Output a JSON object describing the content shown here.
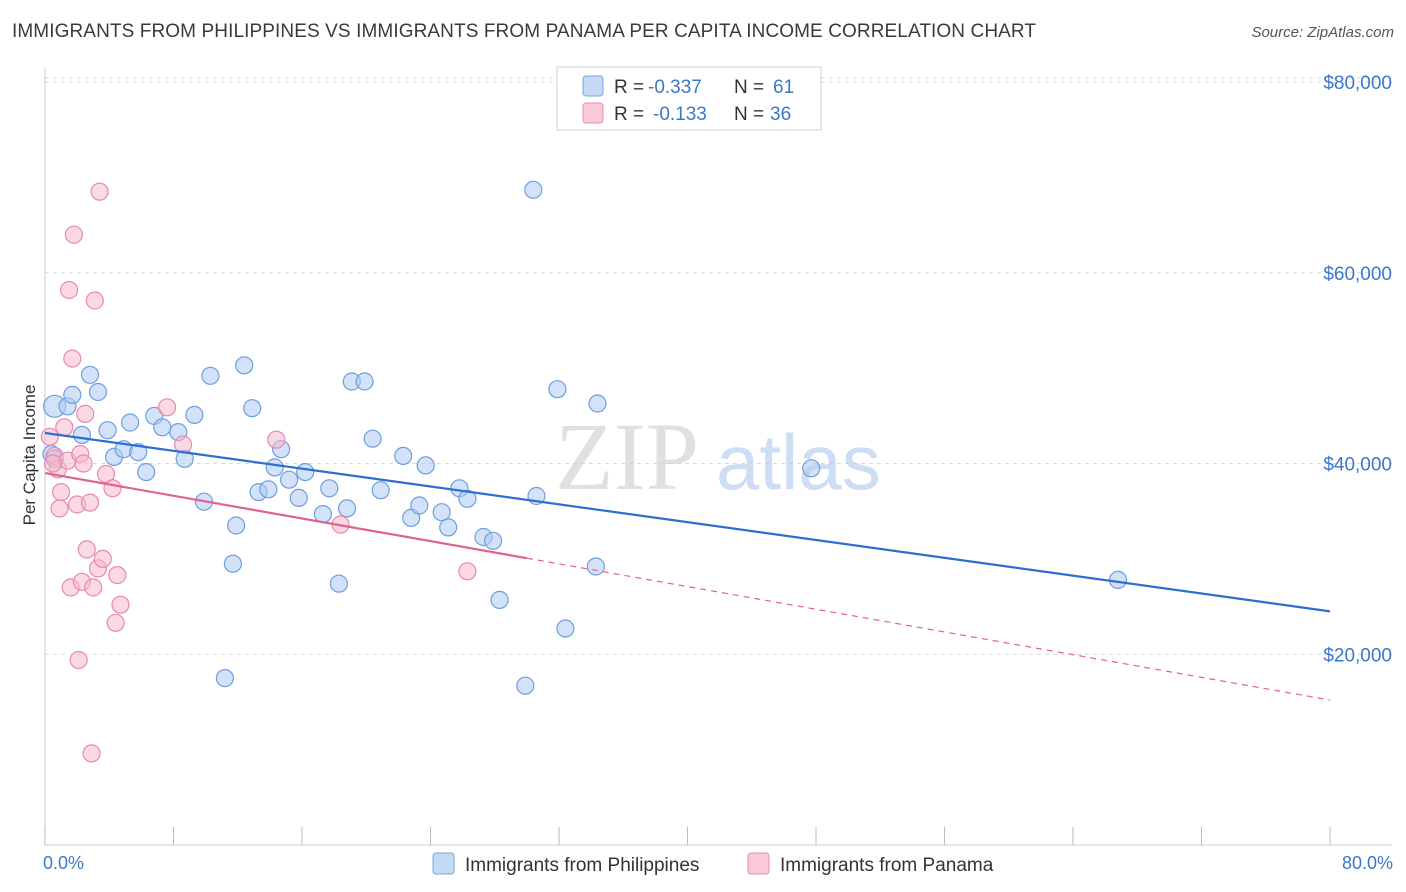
{
  "title": "IMMIGRANTS FROM PHILIPPINES VS IMMIGRANTS FROM PANAMA PER CAPITA INCOME CORRELATION CHART",
  "source": "Source: ZipAtlas.com",
  "watermark": {
    "zip": "ZIP",
    "atlas": "atlas"
  },
  "colors": {
    "blue_fill": "#aecbf2",
    "blue_stroke": "#6d9fdc",
    "blue_line": "#2d6fd0",
    "pink_fill": "#f5b8cd",
    "pink_stroke": "#e88aaa",
    "pink_line": "#e0638f",
    "axis_text": "#3b78c9",
    "grid": "#d9d9d9"
  },
  "legend": {
    "rows": [
      {
        "r_label": "R =",
        "r_value": "-0.337",
        "n_label": "N =",
        "n_value": "61"
      },
      {
        "r_label": "R =",
        "r_value": "-0.133",
        "n_label": "N =",
        "n_value": "36"
      }
    ]
  },
  "chart_data": {
    "type": "scatter",
    "title": "IMMIGRANTS FROM PHILIPPINES VS IMMIGRANTS FROM PANAMA PER CAPITA INCOME CORRELATION CHART",
    "xlabel": "",
    "ylabel": "Per Capita Income",
    "xlim": [
      0,
      80
    ],
    "ylim": [
      0,
      82000
    ],
    "x_tick_labels": [
      "0.0%",
      "80.0%"
    ],
    "y_ticks": [
      20000,
      40000,
      60000,
      80000
    ],
    "y_tick_labels": [
      "$20,000",
      "$40,000",
      "$60,000",
      "$80,000"
    ],
    "series": [
      {
        "name": "Immigrants from Philippines",
        "color": "blue",
        "r": -0.337,
        "n": 61,
        "trend": {
          "x0": 0.0,
          "y0": 43200,
          "x1": 80.0,
          "y1": 24500,
          "solid_to": 80.0
        },
        "points": [
          [
            0.6,
            46000
          ],
          [
            0.4,
            41000
          ],
          [
            0.6,
            40500
          ],
          [
            1.4,
            46000
          ],
          [
            1.7,
            47200
          ],
          [
            2.3,
            43000
          ],
          [
            2.8,
            49300
          ],
          [
            3.3,
            47500
          ],
          [
            3.9,
            43500
          ],
          [
            4.3,
            40700
          ],
          [
            4.9,
            41500
          ],
          [
            5.3,
            44300
          ],
          [
            5.8,
            41200
          ],
          [
            6.3,
            39100
          ],
          [
            6.8,
            45000
          ],
          [
            7.3,
            43800
          ],
          [
            8.3,
            43300
          ],
          [
            8.7,
            40500
          ],
          [
            9.3,
            45100
          ],
          [
            9.9,
            36000
          ],
          [
            10.3,
            49200
          ],
          [
            11.2,
            17500
          ],
          [
            11.7,
            29500
          ],
          [
            11.9,
            33500
          ],
          [
            12.4,
            50300
          ],
          [
            12.9,
            45800
          ],
          [
            13.3,
            37000
          ],
          [
            13.9,
            37300
          ],
          [
            14.3,
            39600
          ],
          [
            14.7,
            41500
          ],
          [
            15.2,
            38300
          ],
          [
            15.8,
            36400
          ],
          [
            16.2,
            39100
          ],
          [
            17.3,
            34700
          ],
          [
            17.7,
            37400
          ],
          [
            18.3,
            27400
          ],
          [
            18.8,
            35300
          ],
          [
            19.1,
            48600
          ],
          [
            19.9,
            48600
          ],
          [
            20.4,
            42600
          ],
          [
            20.9,
            37200
          ],
          [
            22.3,
            40800
          ],
          [
            22.8,
            34300
          ],
          [
            23.3,
            35600
          ],
          [
            23.7,
            39800
          ],
          [
            24.7,
            34900
          ],
          [
            25.1,
            33300
          ],
          [
            25.8,
            37400
          ],
          [
            26.3,
            36300
          ],
          [
            27.3,
            32300
          ],
          [
            27.9,
            31900
          ],
          [
            28.3,
            25700
          ],
          [
            29.9,
            16700
          ],
          [
            30.4,
            68700
          ],
          [
            30.6,
            36600
          ],
          [
            31.9,
            47800
          ],
          [
            32.4,
            22700
          ],
          [
            34.3,
            29200
          ],
          [
            34.4,
            46300
          ],
          [
            47.7,
            39500
          ],
          [
            66.8,
            27800
          ]
        ]
      },
      {
        "name": "Immigrants from Panama",
        "color": "pink",
        "r": -0.133,
        "n": 36,
        "trend": {
          "x0": 0.0,
          "y0": 39000,
          "x1": 80.0,
          "y1": 15200,
          "solid_to": 30.0
        },
        "points": [
          [
            0.3,
            42800
          ],
          [
            0.6,
            40800
          ],
          [
            0.8,
            39400
          ],
          [
            1.0,
            37000
          ],
          [
            0.9,
            35300
          ],
          [
            1.2,
            43800
          ],
          [
            1.4,
            40300
          ],
          [
            1.5,
            58200
          ],
          [
            1.6,
            27000
          ],
          [
            1.7,
            51000
          ],
          [
            1.8,
            64000
          ],
          [
            2.0,
            35700
          ],
          [
            2.1,
            19400
          ],
          [
            2.2,
            41000
          ],
          [
            2.3,
            27600
          ],
          [
            2.5,
            45200
          ],
          [
            2.6,
            31000
          ],
          [
            2.8,
            35900
          ],
          [
            2.9,
            9600
          ],
          [
            3.0,
            27000
          ],
          [
            3.1,
            57100
          ],
          [
            3.3,
            29000
          ],
          [
            3.4,
            68500
          ],
          [
            3.6,
            30000
          ],
          [
            3.8,
            38900
          ],
          [
            4.2,
            37400
          ],
          [
            4.4,
            23300
          ],
          [
            4.5,
            28300
          ],
          [
            4.7,
            25200
          ],
          [
            7.6,
            45900
          ],
          [
            8.6,
            42000
          ],
          [
            14.4,
            42500
          ],
          [
            18.4,
            33600
          ],
          [
            26.3,
            28700
          ],
          [
            0.5,
            40000
          ],
          [
            2.4,
            40000
          ]
        ]
      }
    ]
  }
}
